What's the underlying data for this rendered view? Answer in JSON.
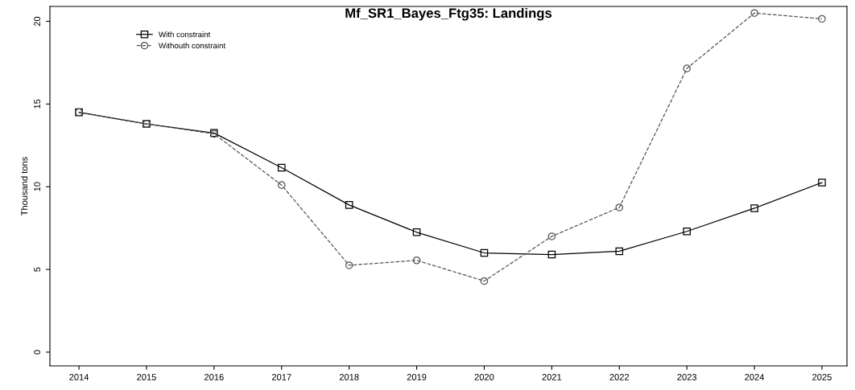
{
  "chart_data": {
    "type": "line",
    "title": "Mf_SR1_Bayes_Ftg35: Landings",
    "ylabel": "Thousand tons",
    "x": [
      2014,
      2015,
      2016,
      2017,
      2018,
      2019,
      2020,
      2021,
      2022,
      2023,
      2024,
      2025
    ],
    "series": [
      {
        "name": "With constraint",
        "color": "#000000",
        "marker": "square",
        "line_style": "solid",
        "values": [
          14.5,
          13.8,
          13.25,
          11.15,
          8.9,
          7.25,
          6.0,
          5.9,
          6.1,
          7.3,
          8.7,
          10.25
        ]
      },
      {
        "name": "Withouth constraint",
        "color": "#555555",
        "marker": "circle",
        "line_style": "dashed",
        "values": [
          14.5,
          13.8,
          13.2,
          10.1,
          5.25,
          5.55,
          4.3,
          7.0,
          8.75,
          17.15,
          20.5,
          20.15
        ]
      }
    ],
    "xlim": [
      2013.57,
      2025.37
    ],
    "xticks": [
      2014,
      2015,
      2016,
      2017,
      2018,
      2019,
      2020,
      2021,
      2022,
      2023,
      2024,
      2025
    ],
    "ylim": [
      -0.83,
      20.9
    ],
    "yticks": [
      0,
      5,
      10,
      15,
      20
    ],
    "grid": false,
    "legend": "top left"
  }
}
